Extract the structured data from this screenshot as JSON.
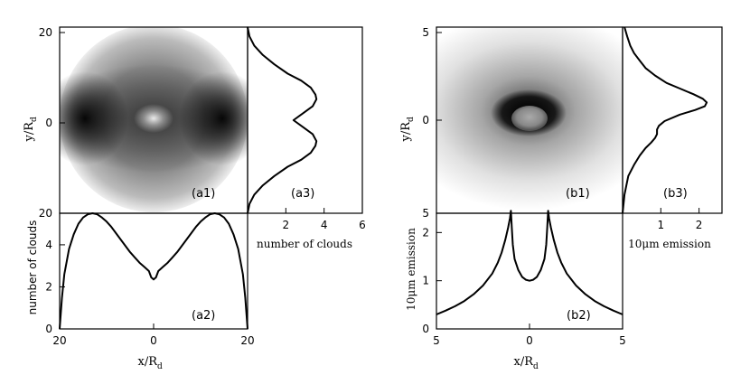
{
  "figure": {
    "panel_a": {
      "image_label": "(a1)",
      "bottom_label": "(a2)",
      "side_label": "(a3)",
      "y_axis_label_main": "y/R",
      "y_axis_label_sub": "d",
      "x_axis_label_main": "x/R",
      "x_axis_label_sub": "d",
      "bottom_y_label": "number of clouds",
      "side_x_label": "number of clouds",
      "left_ticks": [
        "20",
        "0",
        "20"
      ],
      "bottom_y_ticks": [
        "0",
        "2",
        "4"
      ],
      "bottom_x_ticks": [
        "20",
        "0",
        "20"
      ],
      "side_x_ticks": [
        "2",
        "4",
        "6"
      ]
    },
    "panel_b": {
      "image_label": "(b1)",
      "bottom_label": "(b2)",
      "side_label": "(b3)",
      "y_axis_label_main": "y/R",
      "y_axis_label_sub": "d",
      "x_axis_label_main": "x/R",
      "x_axis_label_sub": "d",
      "bottom_y_label": "10μm emission",
      "side_x_label": "10μm emission",
      "left_ticks": [
        "5",
        "0",
        "5"
      ],
      "bottom_y_ticks": [
        "0",
        "1",
        "2"
      ],
      "bottom_x_ticks": [
        "5",
        "0",
        "5"
      ],
      "side_x_ticks": [
        "1",
        "2"
      ]
    }
  },
  "chart_data": [
    {
      "id": "a2",
      "type": "line",
      "xlabel": "x/R_d",
      "ylabel": "number of clouds",
      "xlim": [
        -20,
        20
      ],
      "ylim": [
        0,
        5.5
      ],
      "x": [
        -20,
        -19.5,
        -19,
        -18,
        -17,
        -16,
        -15,
        -14,
        -13,
        -12,
        -11,
        -10,
        -9,
        -8,
        -7,
        -6,
        -5,
        -4,
        -3,
        -2,
        -1,
        -0.5,
        0,
        0.5,
        1,
        2,
        3,
        4,
        5,
        6,
        7,
        8,
        9,
        10,
        11,
        12,
        13,
        14,
        15,
        16,
        17,
        18,
        19,
        19.5,
        20
      ],
      "y": [
        0,
        1.5,
        2.6,
        3.8,
        4.5,
        5.0,
        5.3,
        5.45,
        5.5,
        5.45,
        5.3,
        5.1,
        4.85,
        4.55,
        4.25,
        3.95,
        3.65,
        3.4,
        3.15,
        2.95,
        2.75,
        2.45,
        2.35,
        2.45,
        2.75,
        2.95,
        3.15,
        3.4,
        3.65,
        3.95,
        4.25,
        4.55,
        4.85,
        5.1,
        5.3,
        5.45,
        5.5,
        5.45,
        5.3,
        5.0,
        4.5,
        3.8,
        2.6,
        1.5,
        0
      ]
    },
    {
      "id": "a3",
      "type": "line",
      "xlabel": "number of clouds",
      "ylabel": "y/R_d",
      "xlim": [
        0,
        6
      ],
      "ylim": [
        -20,
        20
      ],
      "x": [
        0,
        0.1,
        0.35,
        0.8,
        1.4,
        2.1,
        2.8,
        3.3,
        3.55,
        3.6,
        3.4,
        2.9,
        2.4,
        2.9,
        3.4,
        3.6,
        3.55,
        3.3,
        2.8,
        2.1,
        1.4,
        0.8,
        0.35,
        0.1,
        0
      ],
      "y": [
        -20,
        -18,
        -16,
        -14,
        -12,
        -10,
        -8.5,
        -7,
        -5.5,
        -4.5,
        -3,
        -1.5,
        0,
        1.5,
        3,
        4.5,
        5.5,
        7,
        8.5,
        10,
        12,
        14,
        16,
        18,
        20
      ]
    },
    {
      "id": "b2",
      "type": "line",
      "xlabel": "x/R_d",
      "ylabel": "10μm emission",
      "xlim": [
        -5,
        5
      ],
      "ylim": [
        0,
        2.4
      ],
      "x": [
        -5,
        -4.5,
        -4,
        -3.5,
        -3,
        -2.5,
        -2,
        -1.7,
        -1.5,
        -1.3,
        -1.15,
        -1.05,
        -1.0,
        -0.95,
        -0.9,
        -0.8,
        -0.6,
        -0.4,
        -0.2,
        0,
        0.2,
        0.4,
        0.6,
        0.8,
        0.9,
        0.95,
        1.0,
        1.05,
        1.15,
        1.3,
        1.5,
        1.7,
        2,
        2.5,
        3,
        3.5,
        4,
        4.5,
        5
      ],
      "y": [
        0.3,
        0.38,
        0.47,
        0.58,
        0.72,
        0.9,
        1.15,
        1.38,
        1.58,
        1.85,
        2.1,
        2.3,
        2.45,
        2.1,
        1.75,
        1.45,
        1.22,
        1.08,
        1.02,
        1.0,
        1.02,
        1.08,
        1.22,
        1.45,
        1.75,
        2.1,
        2.45,
        2.3,
        2.1,
        1.85,
        1.58,
        1.38,
        1.15,
        0.9,
        0.72,
        0.58,
        0.47,
        0.38,
        0.3
      ]
    },
    {
      "id": "b3",
      "type": "line",
      "xlabel": "10μm emission",
      "ylabel": "y/R_d",
      "xlim": [
        0,
        2.6
      ],
      "ylim": [
        -5,
        5
      ],
      "x": [
        0,
        0.05,
        0.15,
        0.3,
        0.45,
        0.6,
        0.75,
        0.85,
        0.9,
        0.9,
        0.95,
        1.1,
        1.5,
        1.9,
        2.15,
        2.2,
        2.1,
        1.85,
        1.5,
        1.15,
        0.85,
        0.6,
        0.45,
        0.3,
        0.2,
        0.12,
        0.05
      ],
      "y": [
        -5,
        -4,
        -3,
        -2.4,
        -1.9,
        -1.5,
        -1.2,
        -0.95,
        -0.75,
        -0.5,
        -0.3,
        -0.05,
        0.3,
        0.55,
        0.75,
        0.95,
        1.15,
        1.4,
        1.7,
        2.0,
        2.4,
        2.8,
        3.2,
        3.6,
        4.0,
        4.5,
        5
      ]
    }
  ]
}
